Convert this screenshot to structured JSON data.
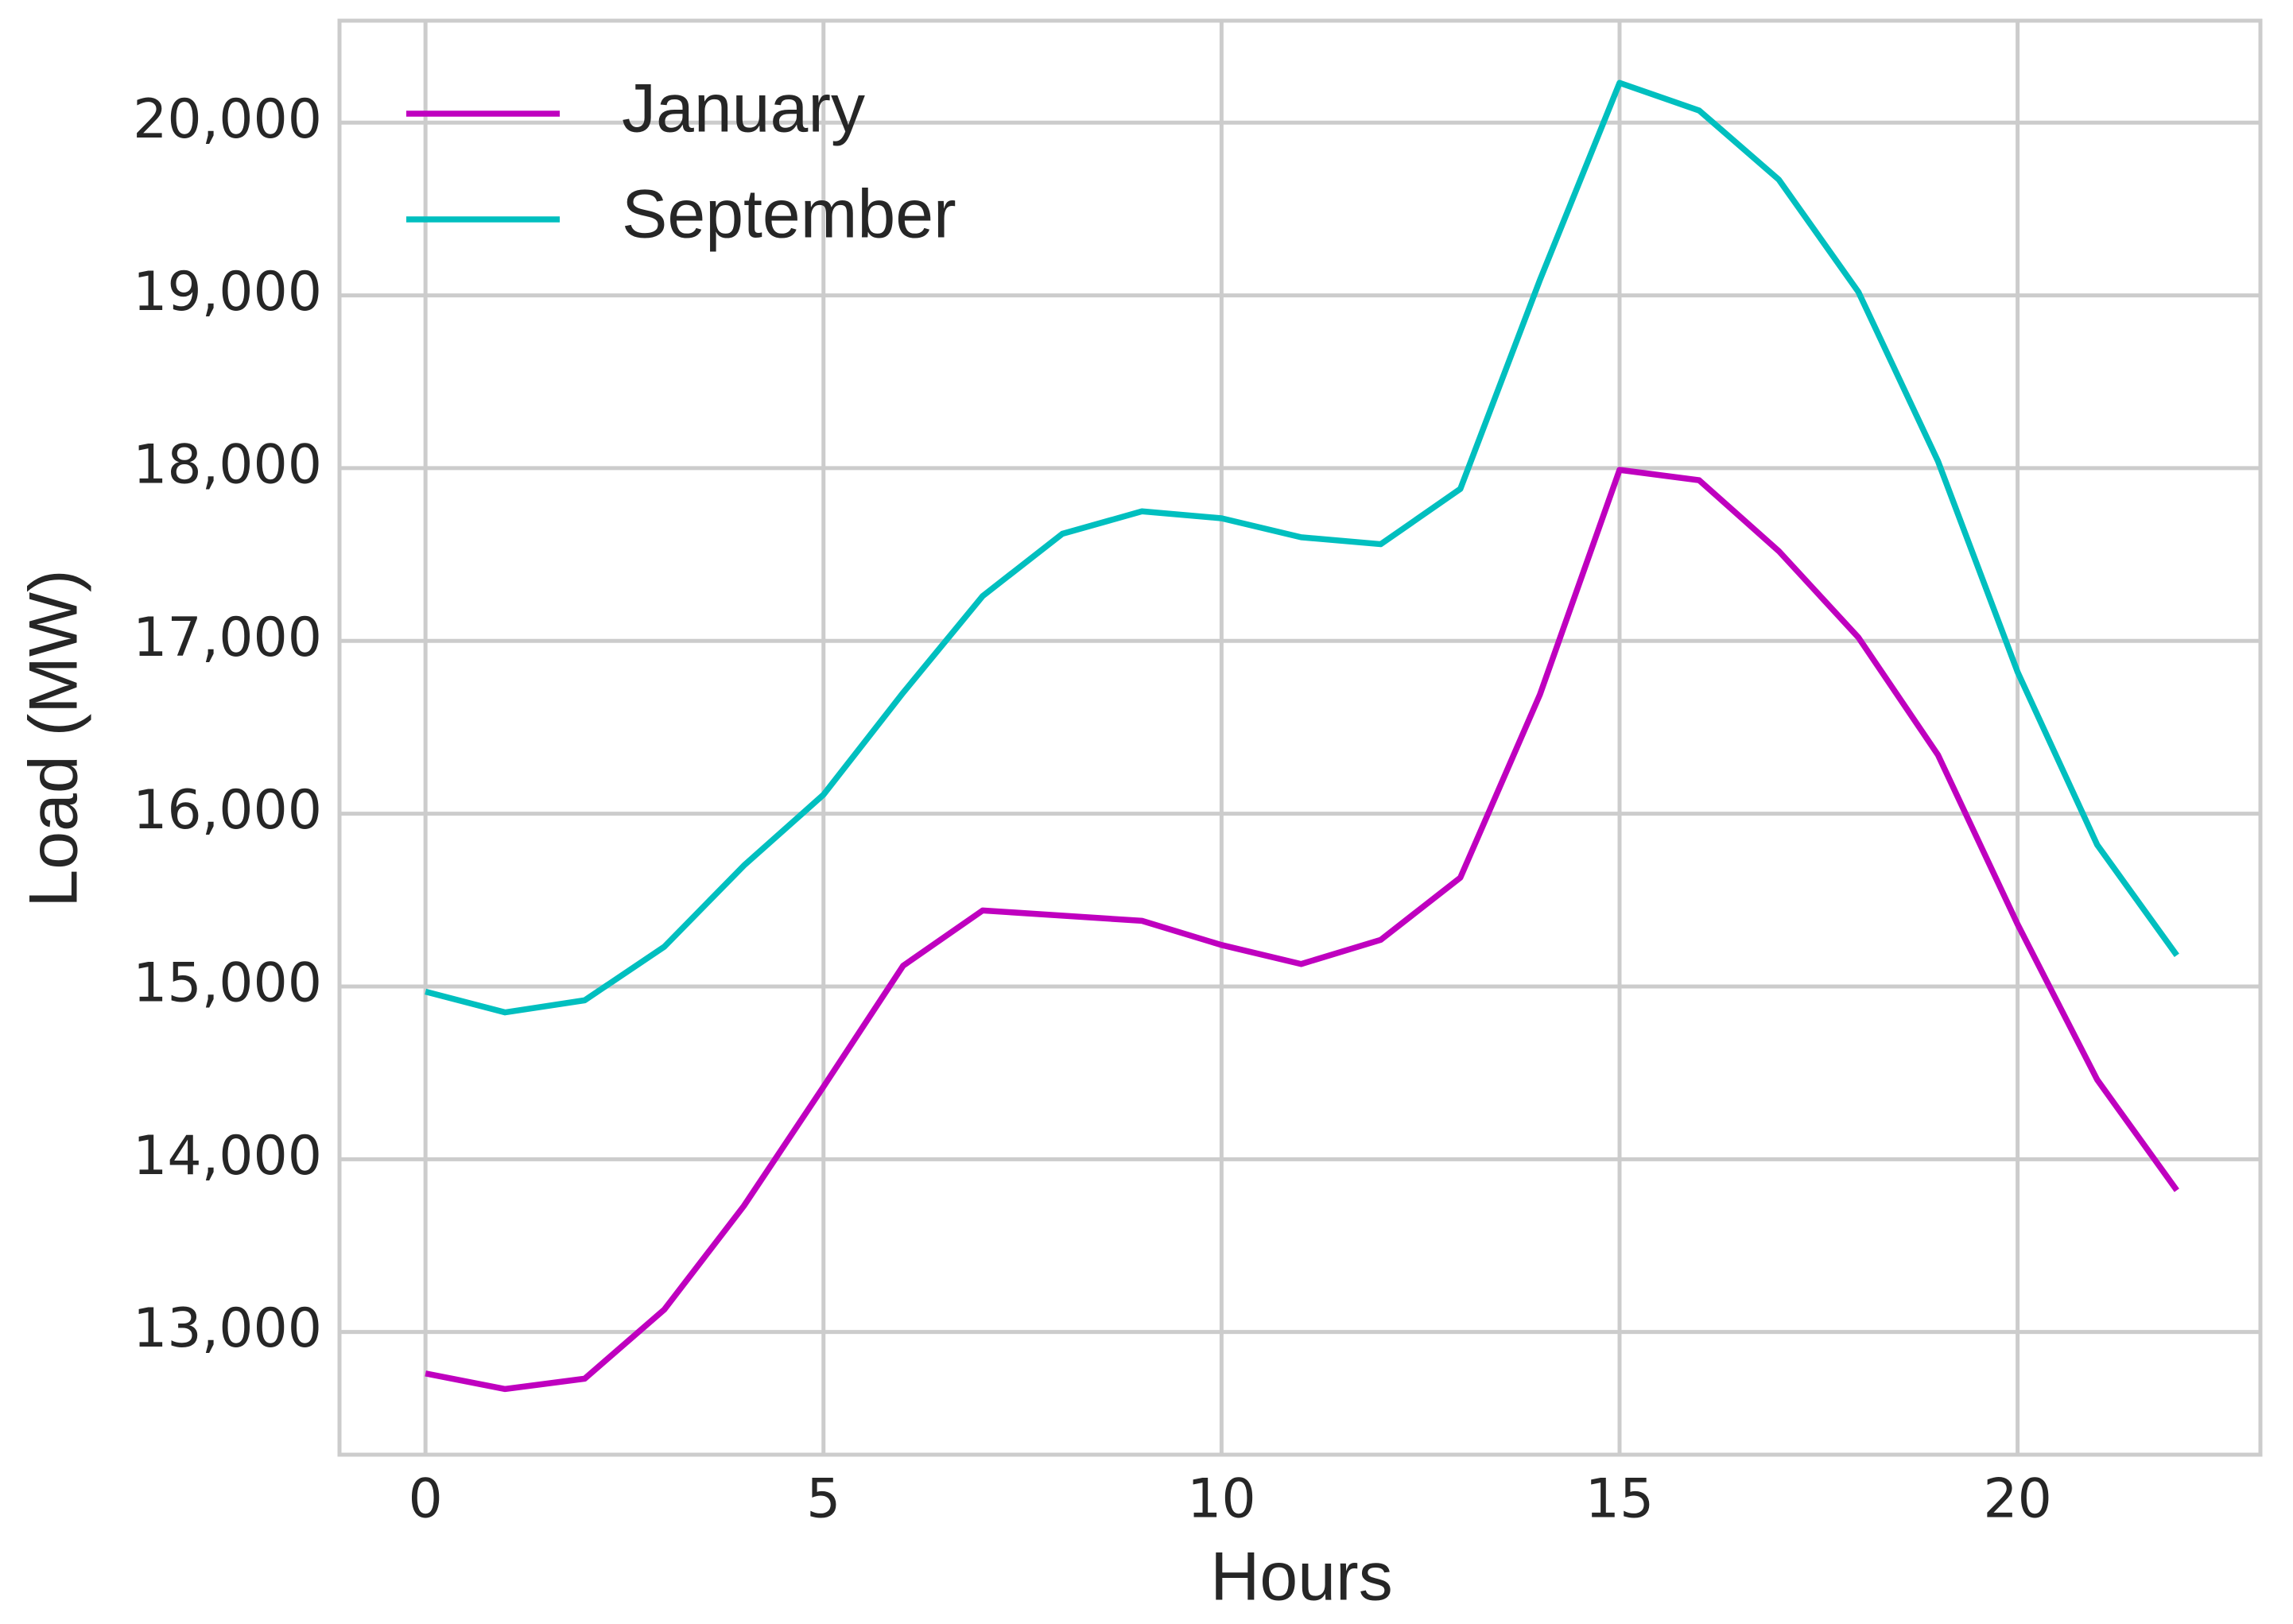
{
  "chart_data": {
    "type": "line",
    "x_label": "Hours",
    "y_label": "Load (MW)",
    "x": [
      0,
      1,
      2,
      3,
      4,
      5,
      6,
      7,
      8,
      9,
      10,
      11,
      12,
      13,
      14,
      15,
      16,
      17,
      18,
      19,
      20,
      21,
      22
    ],
    "series": [
      {
        "name": "January",
        "color": "#bf00bf",
        "values": [
          12760,
          12670,
          12730,
          13130,
          13730,
          14420,
          15120,
          15440,
          15410,
          15380,
          15240,
          15130,
          15270,
          15630,
          16690,
          17990,
          17930,
          17520,
          17020,
          16340,
          15360,
          14460,
          13820
        ]
      },
      {
        "name": "September",
        "color": "#00bfbf",
        "values": [
          14970,
          14850,
          14920,
          15230,
          15700,
          16110,
          16700,
          17260,
          17620,
          17750,
          17710,
          17600,
          17560,
          17880,
          19090,
          20230,
          20070,
          19670,
          19020,
          18040,
          16820,
          15820,
          15180
        ]
      }
    ],
    "xlim": [
      -1.08,
      23.05
    ],
    "ylim": [
      12290,
      20590
    ],
    "xticks": [
      0,
      5,
      10,
      15,
      20
    ],
    "yticks": [
      {
        "value": 13000,
        "label": "13,000"
      },
      {
        "value": 14000,
        "label": "14,000"
      },
      {
        "value": 15000,
        "label": "15,000"
      },
      {
        "value": 16000,
        "label": "16,000"
      },
      {
        "value": 17000,
        "label": "17,000"
      },
      {
        "value": 18000,
        "label": "18,000"
      },
      {
        "value": 19000,
        "label": "19,000"
      },
      {
        "value": 20000,
        "label": "20,000"
      }
    ],
    "grid": true,
    "legend": "upper left"
  }
}
